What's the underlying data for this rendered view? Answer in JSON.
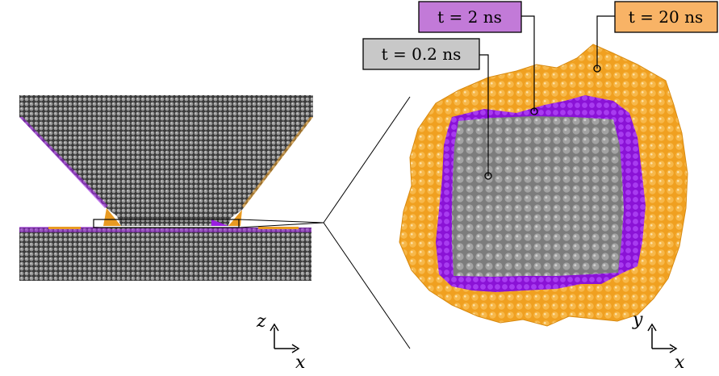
{
  "labels": {
    "t_small": "t = 0.2 ns",
    "t_mid": "t = 2 ns",
    "t_large": "t = 20 ns"
  },
  "axes_left": {
    "vertical": "z",
    "horizontal": "x"
  },
  "axes_right": {
    "vertical": "y",
    "horizontal": "x"
  },
  "colors": {
    "atom_gray": "#8c8c8c",
    "atom_dark": "#3c3c3c",
    "purple": "#9a1fe0",
    "orange": "#f5a623",
    "label_gray_bg": "#c8c8c8",
    "label_purple_bg": "#c27ad8",
    "label_orange_bg": "#f8b366"
  }
}
